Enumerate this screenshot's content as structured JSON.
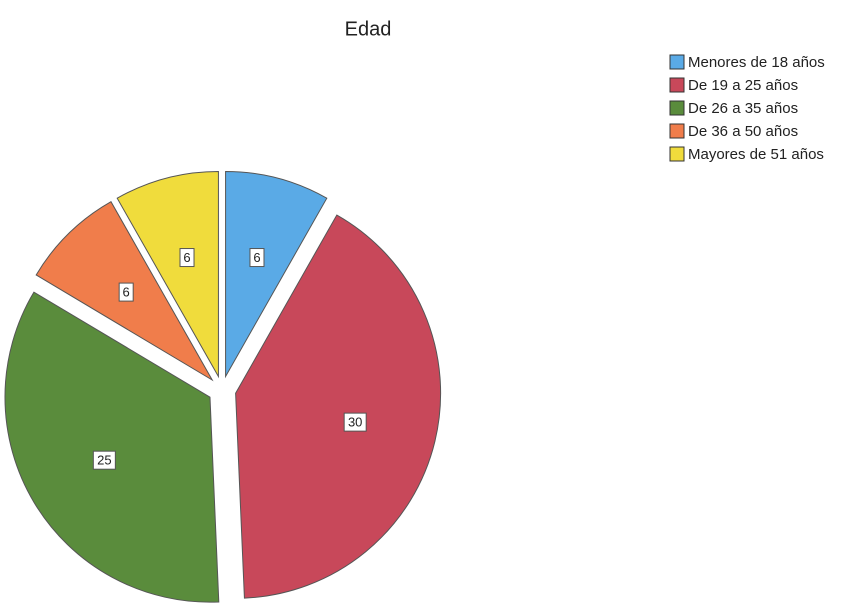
{
  "chart_data": {
    "type": "pie",
    "title": "Edad",
    "categories": [
      "Menores de 18 años",
      "De 19 a 25 años",
      "De 26 a 35 años",
      "De 36 a 50 años",
      "Mayores de 51 años"
    ],
    "values": [
      6,
      30,
      25,
      6,
      6
    ],
    "colors": [
      "#5aaae6",
      "#c8485a",
      "#5a8c3c",
      "#f07d4b",
      "#f0dc3c"
    ],
    "legend": "top-right"
  }
}
